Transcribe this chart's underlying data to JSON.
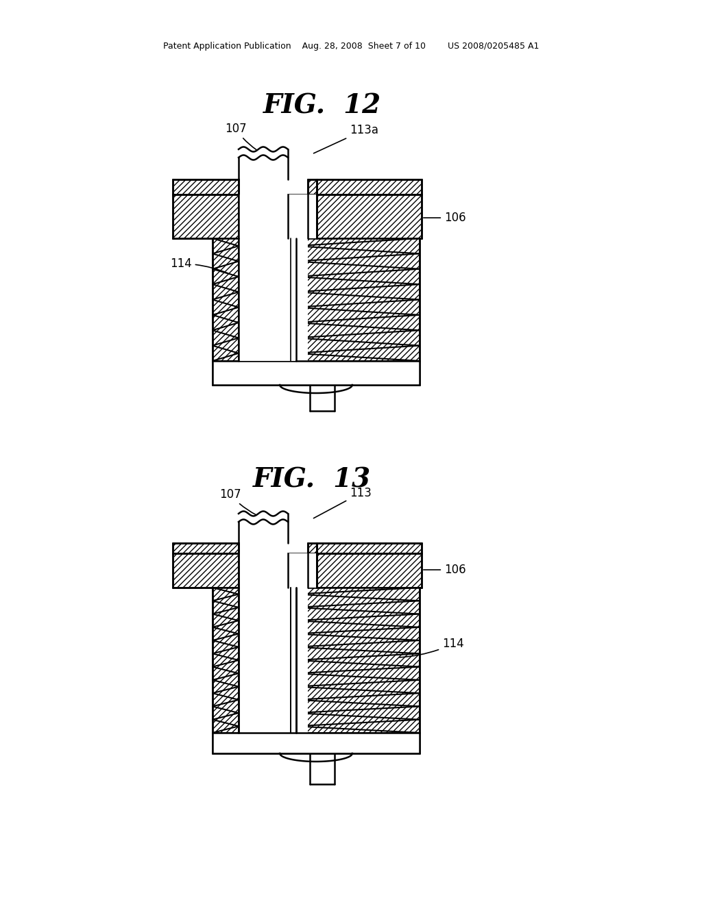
{
  "bg_color": "#ffffff",
  "line_color": "#000000",
  "header_text": "Patent Application Publication    Aug. 28, 2008  Sheet 7 of 10        US 2008/0205485 A1",
  "fig12_title": "FIG.  12",
  "fig13_title": "FIG.  13"
}
